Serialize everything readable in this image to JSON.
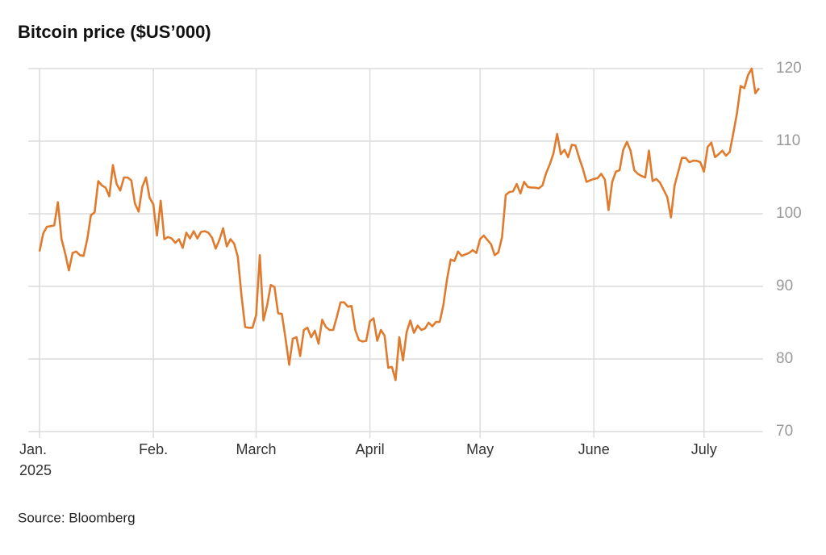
{
  "chart_data": {
    "type": "line",
    "title": "Bitcoin price ($US’000)",
    "source": "Source: Bloomberg",
    "year_label": "2025",
    "categories": [
      "Jan.",
      null,
      null,
      null,
      null,
      null,
      null,
      null,
      null,
      null,
      null,
      null,
      null,
      null,
      null,
      null,
      null,
      null,
      null,
      null,
      null,
      null,
      null,
      null,
      null,
      null,
      null,
      null,
      null,
      null,
      null,
      "Feb.",
      null,
      null,
      null,
      null,
      null,
      null,
      null,
      null,
      null,
      null,
      null,
      null,
      null,
      null,
      null,
      null,
      null,
      null,
      null,
      null,
      null,
      null,
      null,
      null,
      null,
      null,
      null,
      "March",
      null,
      null,
      null,
      null,
      null,
      null,
      null,
      null,
      null,
      null,
      null,
      null,
      null,
      null,
      null,
      null,
      null,
      null,
      null,
      null,
      null,
      null,
      null,
      null,
      null,
      null,
      null,
      null,
      null,
      null,
      "April",
      null,
      null,
      null,
      null,
      null,
      null,
      null,
      null,
      null,
      null,
      null,
      null,
      null,
      null,
      null,
      null,
      null,
      null,
      null,
      null,
      null,
      null,
      null,
      null,
      null,
      null,
      null,
      null,
      null,
      "May",
      null,
      null,
      null,
      null,
      null,
      null,
      null,
      null,
      null,
      null,
      null,
      null,
      null,
      null,
      null,
      null,
      null,
      null,
      null,
      null,
      null,
      null,
      null,
      null,
      null,
      null,
      null,
      null,
      null,
      null,
      "June",
      null,
      null,
      null,
      null,
      null,
      null,
      null,
      null,
      null,
      null,
      null,
      null,
      null,
      null,
      null,
      null,
      null,
      null,
      null,
      null,
      null,
      null,
      null,
      null,
      null,
      null,
      null,
      null,
      null,
      "July",
      null,
      null,
      null,
      null,
      null,
      null,
      null,
      null,
      null,
      null,
      null,
      null,
      null,
      null,
      null
    ],
    "series": [
      {
        "name": "Bitcoin",
        "color": "#e07b2e",
        "values": [
          94.8,
          97.3,
          98.2,
          98.3,
          98.4,
          101.6,
          96.5,
          94.5,
          92.2,
          94.6,
          94.8,
          94.3,
          94.2,
          96.5,
          99.8,
          100.2,
          104.5,
          103.9,
          103.6,
          102.4,
          106.7,
          104.1,
          103.2,
          105.0,
          105.0,
          104.6,
          101.4,
          100.3,
          103.7,
          105.0,
          102.2,
          101.3,
          97.0,
          101.8,
          96.5,
          96.8,
          96.6,
          96.0,
          96.5,
          95.3,
          97.4,
          96.6,
          97.6,
          96.6,
          97.5,
          97.6,
          97.4,
          96.7,
          95.2,
          96.4,
          98.0,
          95.5,
          96.5,
          95.9,
          94.1,
          88.8,
          84.4,
          84.3,
          84.3,
          86.0,
          94.3,
          85.3,
          87.4,
          90.2,
          89.9,
          86.3,
          86.2,
          82.9,
          79.2,
          82.8,
          83.0,
          80.4,
          84.0,
          84.3,
          83.0,
          83.9,
          82.1,
          85.4,
          84.4,
          84.0,
          84.0,
          85.8,
          87.8,
          87.8,
          87.2,
          87.3,
          84.0,
          82.6,
          82.4,
          82.5,
          85.2,
          85.6,
          82.5,
          84.0,
          83.2,
          78.8,
          78.9,
          77.1,
          83.0,
          79.8,
          83.7,
          85.3,
          83.6,
          84.6,
          84.0,
          84.2,
          85.0,
          84.5,
          85.1,
          85.1,
          87.4,
          91.0,
          93.7,
          93.5,
          94.8,
          94.2,
          94.4,
          94.6,
          95.0,
          94.6,
          96.5,
          97.0,
          96.4,
          95.8,
          94.3,
          94.7,
          96.8,
          102.6,
          103.0,
          103.1,
          104.1,
          102.8,
          104.4,
          103.7,
          103.6,
          103.6,
          103.5,
          103.9,
          105.6,
          106.8,
          108.3,
          111.0,
          108.2,
          108.8,
          107.8,
          109.5,
          109.4,
          107.7,
          106.2,
          104.4,
          104.6,
          104.8,
          104.9,
          105.5,
          104.7,
          100.5,
          104.4,
          105.8,
          106.0,
          108.8,
          109.9,
          108.7,
          106.0,
          105.5,
          105.2,
          105.0,
          108.7,
          104.5,
          104.8,
          104.3,
          103.3,
          102.3,
          99.5,
          103.9,
          105.8,
          107.7,
          107.7,
          107.1,
          107.3,
          107.3,
          107.1,
          105.8,
          109.2,
          109.8,
          107.8,
          108.2,
          108.7,
          108.0,
          108.5,
          111.1,
          113.9,
          117.6,
          117.3,
          119.1,
          120.0,
          116.6,
          117.3
        ]
      }
    ],
    "ylim": [
      70,
      120
    ],
    "yticks": [
      70,
      80,
      90,
      100,
      110,
      120
    ],
    "grid": true
  }
}
